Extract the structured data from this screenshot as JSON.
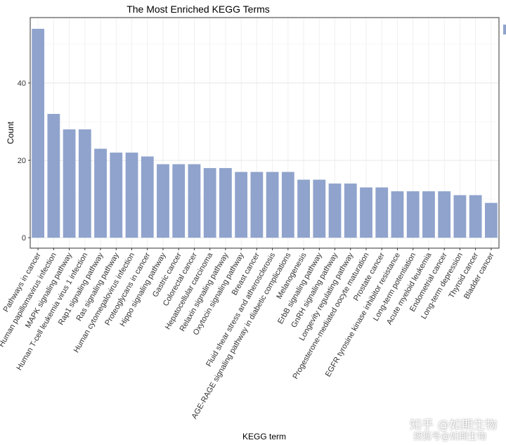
{
  "chart_data": {
    "type": "bar",
    "title": "The Most Enriched KEGG Terms",
    "xlabel": "KEGG term",
    "ylabel": "Count",
    "ylim": [
      -2.7,
      56.9
    ],
    "yticks": [
      0,
      20,
      40
    ],
    "grid": true,
    "legend": "right (cut off)",
    "bar_color": "#8fa3cc",
    "categories": [
      "Pathways in cancer",
      "Human papillomavirus infection",
      "MAPK signaling pathway",
      "Human T-cell leukemia virus 1 infection",
      "Rap1 signaling pathway",
      "Ras signaling pathway",
      "Human cytomegalovirus infection",
      "Proteoglycans in cancer",
      "Hippo signaling pathway",
      "Gastric cancer",
      "Colorectal cancer",
      "Hepatocellular carcinoma",
      "Relaxin signaling pathway",
      "Oxytocin signaling pathway",
      "Breast cancer",
      "Fluid shear stress and atherosclerosis",
      "AGE-RAGE signaling pathway in diabetic complications",
      "Melanogenesis",
      "ErbB signaling pathway",
      "GnRH signaling pathway",
      "Longevity regulating pathway",
      "Progesterone-mediated oocyte maturation",
      "Prostate cancer",
      "EGFR tyrosine kinase inhibitor resistance",
      "Long-term potentiation",
      "Acute myeloid leukemia",
      "Endometrial cancer",
      "Long-term depression",
      "Thyroid cancer",
      "Bladder cancer"
    ],
    "values": [
      54,
      32,
      28,
      28,
      23,
      22,
      22,
      21,
      19,
      19,
      19,
      18,
      18,
      17,
      17,
      17,
      17,
      15,
      15,
      14,
      14,
      13,
      13,
      12,
      12,
      12,
      12,
      11,
      11,
      9
    ]
  },
  "watermark": {
    "line1": "知乎 @如期生物",
    "line2": "搜狐号@如期生物"
  }
}
